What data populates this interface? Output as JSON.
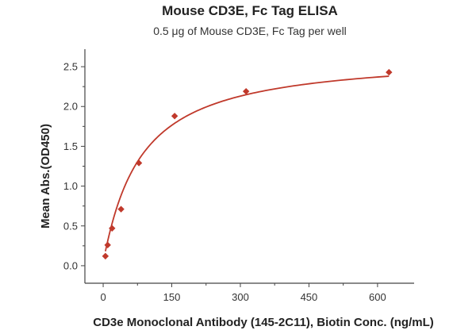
{
  "chart_data": {
    "type": "scatter",
    "title": "Mouse CD3E, Fc Tag ELISA",
    "subtitle": "0.5 μg of Mouse CD3E, Fc Tag per well",
    "xlabel": "CD3e Monoclonal Antibody (145-2C11), Biotin Conc. (ng/mL)",
    "ylabel": "Mean Abs.(OD450)",
    "xlim": [
      -40,
      680
    ],
    "ylim": [
      -0.22,
      2.72
    ],
    "xticks": [
      0,
      150,
      300,
      450,
      600
    ],
    "xtick_labels": [
      "0",
      "150",
      "300",
      "450",
      "600"
    ],
    "yticks": [
      0.0,
      0.5,
      1.0,
      1.5,
      2.0,
      2.5
    ],
    "ytick_labels": [
      "0.0",
      "0.5",
      "1.0",
      "1.5",
      "2.0",
      "2.5"
    ],
    "grid": false,
    "series": [
      {
        "marker": "diamond",
        "color": "#c0392b",
        "x": [
          4.9,
          9.8,
          19.5,
          39.1,
          78.1,
          156.3,
          312.5,
          625
        ],
        "y": [
          0.12,
          0.26,
          0.47,
          0.71,
          1.29,
          1.88,
          2.19,
          2.43
        ]
      }
    ],
    "fit_curve": {
      "type": "4PL",
      "color": "#c0392b",
      "bottom": 0.05,
      "top": 2.65,
      "ec50": 80,
      "hill": 1.05
    }
  }
}
